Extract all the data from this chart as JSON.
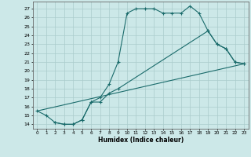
{
  "xlabel": "Humidex (Indice chaleur)",
  "xlim": [
    -0.5,
    23.5
  ],
  "ylim": [
    13.5,
    27.8
  ],
  "xticks": [
    0,
    1,
    2,
    3,
    4,
    5,
    6,
    7,
    8,
    9,
    10,
    11,
    12,
    13,
    14,
    15,
    16,
    17,
    18,
    19,
    20,
    21,
    22,
    23
  ],
  "yticks": [
    14,
    15,
    16,
    17,
    18,
    19,
    20,
    21,
    22,
    23,
    24,
    25,
    26,
    27
  ],
  "bg_color": "#cce8e8",
  "grid_color": "#aacccc",
  "line_color": "#1a6b6b",
  "line1_x": [
    0,
    1,
    2,
    3,
    4,
    5,
    6,
    7,
    8,
    9,
    10,
    11,
    12,
    13,
    14,
    15,
    16,
    17,
    18,
    19,
    20,
    21,
    22,
    23
  ],
  "line1_y": [
    15.5,
    15.0,
    14.2,
    14.0,
    14.0,
    14.5,
    16.5,
    17.0,
    18.5,
    21.0,
    26.5,
    27.0,
    27.0,
    27.0,
    26.5,
    26.5,
    26.5,
    27.3,
    26.5,
    24.5,
    23.0,
    22.5,
    21.0,
    20.8
  ],
  "line2_x": [
    2,
    3,
    4,
    5,
    6,
    7,
    8,
    9,
    19,
    20,
    21,
    22,
    23
  ],
  "line2_y": [
    14.2,
    14.0,
    14.0,
    14.5,
    16.5,
    16.5,
    17.5,
    18.0,
    24.5,
    23.0,
    22.5,
    21.0,
    20.8
  ],
  "line3_x": [
    0,
    23
  ],
  "line3_y": [
    15.5,
    20.8
  ]
}
